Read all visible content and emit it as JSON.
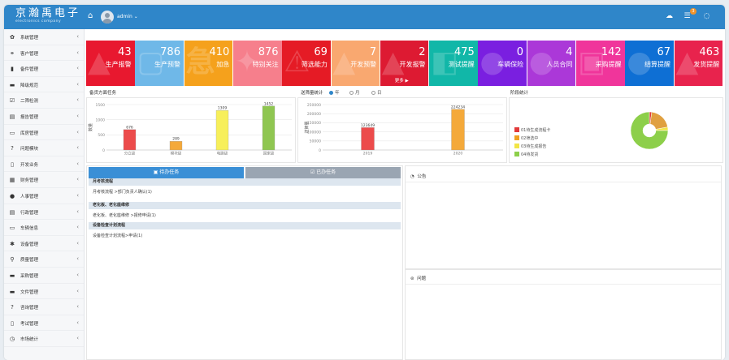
{
  "header": {
    "brand_title": "京瀚禹电子",
    "brand_sub": "electronics company",
    "username": "admin",
    "notification_count": "3"
  },
  "sidebar": {
    "items": [
      {
        "icon": "gear-icon",
        "glyph": "✿",
        "label": "系统管理"
      },
      {
        "icon": "handshake-icon",
        "glyph": "⚭",
        "label": "客户管理"
      },
      {
        "icon": "mobile-icon",
        "glyph": "▮",
        "label": "备件管理"
      },
      {
        "icon": "book-icon",
        "glyph": "▬",
        "label": "降级规范"
      },
      {
        "icon": "checkbox-icon",
        "glyph": "☑",
        "label": "二筛检测"
      },
      {
        "icon": "list-icon",
        "glyph": "▤",
        "label": "报告管理"
      },
      {
        "icon": "laptop-icon",
        "glyph": "▭",
        "label": "库房管理"
      },
      {
        "icon": "question-circle-icon",
        "glyph": "?",
        "label": "问题模块"
      },
      {
        "icon": "file-icon",
        "glyph": "▯",
        "label": "开发业务"
      },
      {
        "icon": "calculator-icon",
        "glyph": "▦",
        "label": "财务管理"
      },
      {
        "icon": "user-circle-icon",
        "glyph": "●",
        "label": "人事管理"
      },
      {
        "icon": "document-icon",
        "glyph": "▤",
        "label": "行政管理"
      },
      {
        "icon": "car-icon",
        "glyph": "▭",
        "label": "车辆信息"
      },
      {
        "icon": "asterisk-icon",
        "glyph": "✱",
        "label": "设备管理"
      },
      {
        "icon": "search-icon",
        "glyph": "⚲",
        "label": "质量管理"
      },
      {
        "icon": "cart-icon",
        "glyph": "▬",
        "label": "采购管理"
      },
      {
        "icon": "folder-icon",
        "glyph": "▬",
        "label": "文件管理"
      },
      {
        "icon": "question-circle-icon",
        "glyph": "?",
        "label": "咨询管理"
      },
      {
        "icon": "exam-icon",
        "glyph": "▯",
        "label": "考试管理"
      },
      {
        "icon": "clock-icon",
        "glyph": "◷",
        "label": "市场统计"
      }
    ]
  },
  "tiles": [
    {
      "num": "43",
      "label": "生产报警",
      "color": "#e8182f",
      "wm": "▲"
    },
    {
      "num": "786",
      "label": "生产预警",
      "color": "#6fb8e8",
      "wm": "▢"
    },
    {
      "num": "410",
      "label": "加急",
      "color": "#f5a11c",
      "wm": "急"
    },
    {
      "num": "876",
      "label": "特别关注",
      "color": "#f67f8c",
      "wm": "✦"
    },
    {
      "num": "69",
      "label": "筛选能力",
      "color": "#e51b25",
      "wm": "⚠"
    },
    {
      "num": "7",
      "label": "开发预警",
      "color": "#f9a870",
      "wm": "▲"
    },
    {
      "num": "2",
      "label": "开发报警",
      "color": "#dd1a32",
      "wm": "▲",
      "more": "更多 ▶"
    },
    {
      "num": "475",
      "label": "测试提醒",
      "color": "#11b7a8",
      "wm": "◧"
    },
    {
      "num": "0",
      "label": "车辆保险",
      "color": "#7a1fe0",
      "wm": "●"
    },
    {
      "num": "4",
      "label": "人员合同",
      "color": "#ab38d8",
      "wm": "●"
    },
    {
      "num": "142",
      "label": "采购提醒",
      "color": "#f0359b",
      "wm": "▣"
    },
    {
      "num": "67",
      "label": "结算提醒",
      "color": "#0e6fd4",
      "wm": "●"
    },
    {
      "num": "463",
      "label": "发货提醒",
      "color": "#e8234d",
      "wm": "▲"
    }
  ],
  "panels": {
    "ability_title": "备货方面任务",
    "ratio_title": "送筛量统计",
    "stage_title": "阶段统计",
    "radio_year": "年",
    "radio_month": "月",
    "radio_day": "日",
    "legend": [
      {
        "label": "01待生成流程卡",
        "color": "#e23a3a"
      },
      {
        "label": "02筛选中",
        "color": "#f0a020"
      },
      {
        "label": "03待生成报告",
        "color": "#f2e545"
      },
      {
        "label": "04待发货",
        "color": "#8dcf4a"
      }
    ]
  },
  "chart_data": [
    {
      "type": "bar",
      "title": "",
      "ylabel": "数量",
      "ylim": [
        0,
        1500
      ],
      "yticks": [
        0,
        500,
        1000,
        1500
      ],
      "categories": [
        "分立级",
        "模块级",
        "电路级",
        "国家级"
      ],
      "values": [
        676,
        289,
        1309,
        1452
      ],
      "colors": [
        "#ec4b4b",
        "#f4a93a",
        "#f7ef5a",
        "#8fc651"
      ]
    },
    {
      "type": "bar",
      "title": "",
      "ylabel": "送筛量",
      "ylim": [
        0,
        250000
      ],
      "yticks": [
        0,
        50000,
        100000,
        150000,
        200000,
        250000
      ],
      "categories": [
        "2019",
        "2020"
      ],
      "values": [
        123649,
        224234
      ],
      "colors": [
        "#ec4b4b",
        "#f4a93a"
      ]
    },
    {
      "type": "pie",
      "categories": [
        "01待生成流程卡",
        "02筛选中",
        "03待生成报告",
        "04待发货"
      ],
      "values": [
        2,
        20,
        3,
        75
      ],
      "colors": [
        "#e23a3a",
        "#e0a040",
        "#f2e545",
        "#8dcf4a"
      ]
    }
  ],
  "tasks": {
    "tab_todo": "待办任务",
    "tab_done": "已办任务",
    "sections": [
      {
        "title": "月考核流程",
        "row": "月考核流程 >部门负责人确认(1)"
      },
      {
        "title": "老化板、老化座维修",
        "row": "老化板、老化座维修 >报修申请(1)"
      },
      {
        "title": "设备检查计划流程",
        "row": "设备检查计划流程>申请(1)"
      }
    ]
  },
  "notice": {
    "title": "公告"
  },
  "questions": {
    "title": "问题"
  }
}
